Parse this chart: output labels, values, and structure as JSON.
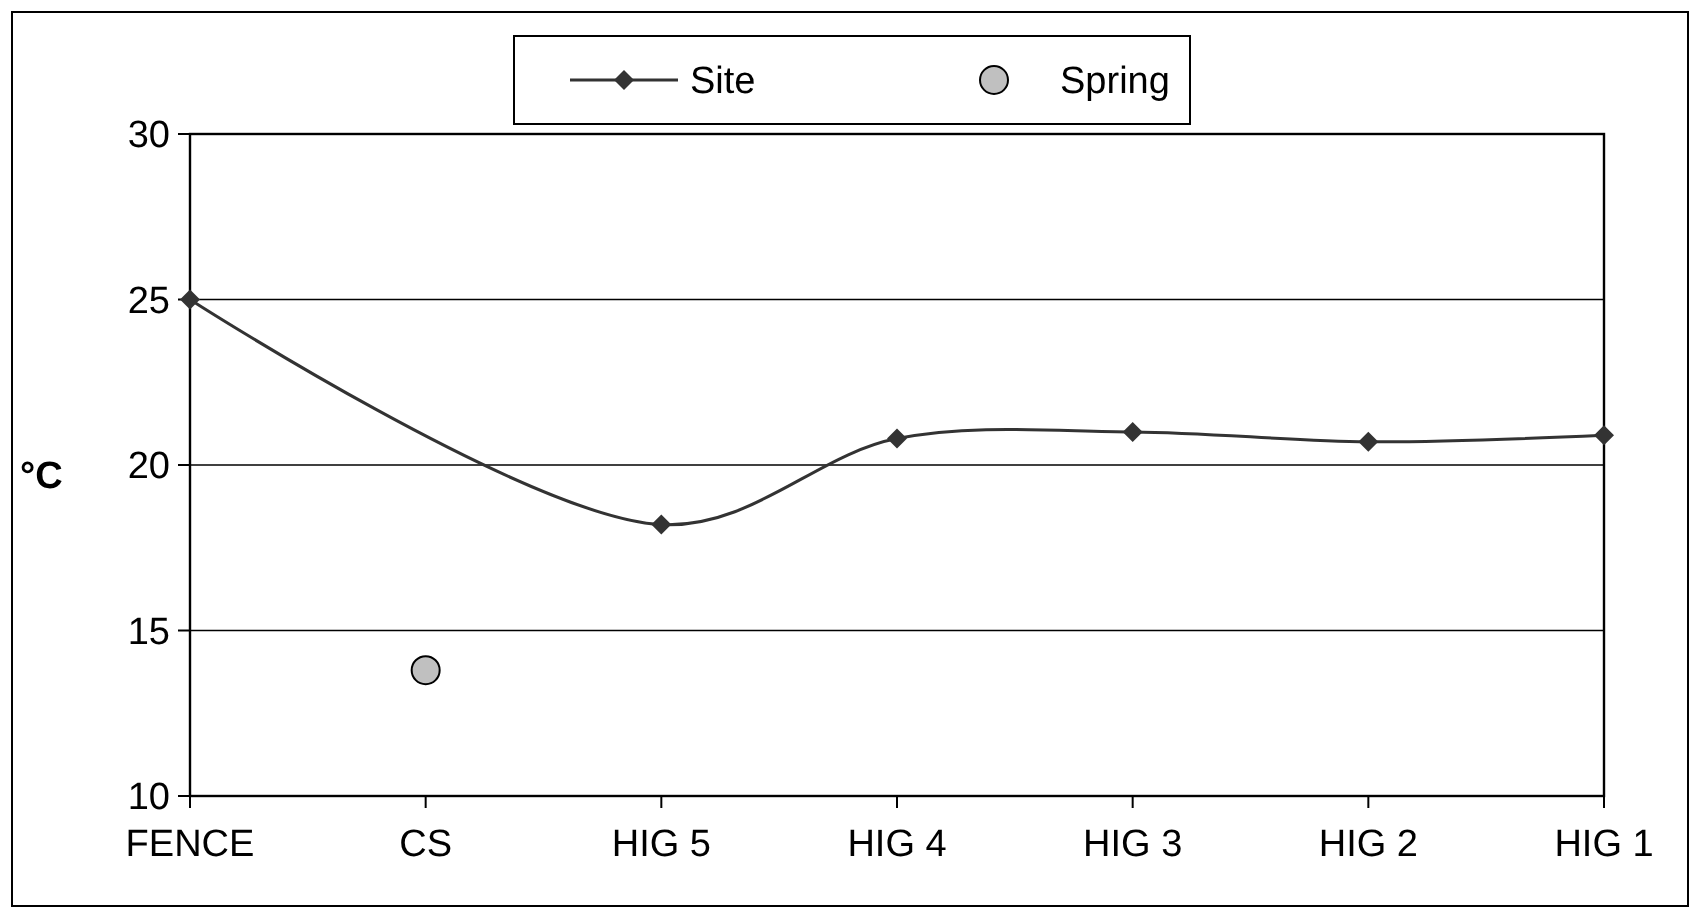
{
  "chart_data": {
    "type": "line",
    "ylabel": "°C",
    "categories": [
      "FENCE",
      "CS",
      "HIG 5",
      "HIG 4",
      "HIG 3",
      "HIG 2",
      "HIG 1"
    ],
    "series": [
      {
        "name": "Site",
        "color": "#333333",
        "marker": "diamond",
        "values": [
          25,
          null,
          18.2,
          20.8,
          21.0,
          20.7,
          20.9
        ]
      },
      {
        "name": "Spring",
        "type": "scatter",
        "color": "#c0c0c0",
        "marker": "circle",
        "values": [
          null,
          13.8,
          null,
          null,
          null,
          null,
          null
        ]
      }
    ],
    "ylim": [
      10,
      30
    ],
    "yticks": [
      10,
      15,
      20,
      25,
      30
    ],
    "grid": "y",
    "legend": "top"
  }
}
